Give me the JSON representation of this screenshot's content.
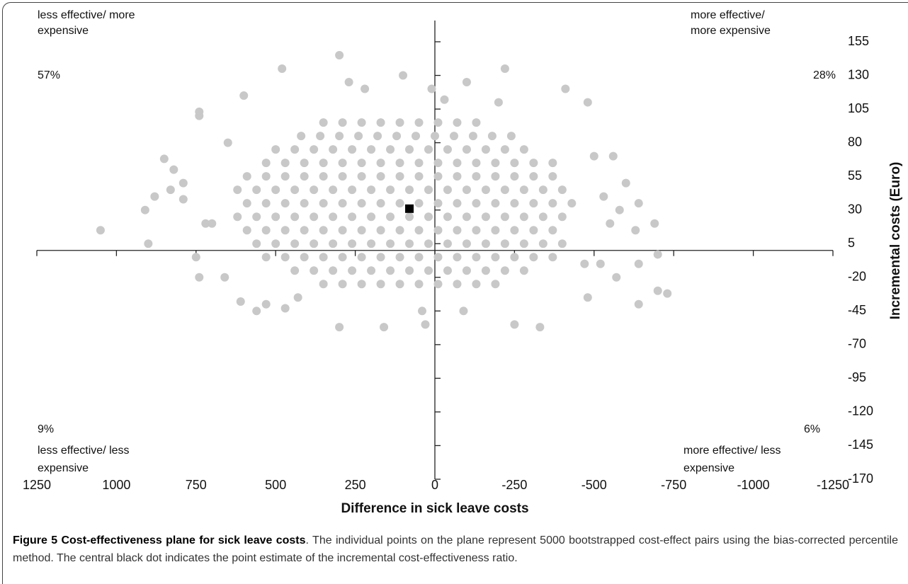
{
  "chart_data": {
    "type": "scatter",
    "x_label": "Difference in sick leave costs",
    "y_label": "Incremental costs (Euro)",
    "xlim": [
      1250,
      -1250
    ],
    "xticks": [
      1250,
      1000,
      750,
      500,
      250,
      0,
      -250,
      -500,
      -750,
      -1000,
      -1250
    ],
    "ylim": [
      -170,
      155
    ],
    "yticks": [
      155,
      130,
      105,
      80,
      55,
      30,
      5,
      -20,
      -45,
      -70,
      -95,
      -120,
      -145,
      -170
    ],
    "annotations": [
      {
        "lines": [
          "less effective/ more",
          "expensive"
        ],
        "share": "57%",
        "corner": "top-left"
      },
      {
        "lines": [
          "more effective/",
          "more expensive"
        ],
        "share": "28%",
        "corner": "top-right"
      },
      {
        "lines": [
          "less effective/ less",
          "expensive"
        ],
        "share": "9%",
        "corner": "bottom-left"
      },
      {
        "lines": [
          "more effective/ less",
          "expensive"
        ],
        "share": "6%",
        "corner": "bottom-right"
      }
    ],
    "series": [
      {
        "color": "#c8c8c8",
        "x": [
          350,
          290,
          230,
          170,
          110,
          50,
          -10,
          -70,
          -130,
          420,
          360,
          300,
          240,
          180,
          120,
          60,
          0,
          -60,
          -120,
          -180,
          -240,
          500,
          440,
          380,
          320,
          260,
          200,
          140,
          80,
          20,
          -40,
          -100,
          -160,
          -220,
          -280,
          530,
          470,
          410,
          350,
          290,
          230,
          170,
          110,
          50,
          -10,
          -70,
          -130,
          -190,
          -250,
          -310,
          -370,
          590,
          530,
          470,
          410,
          350,
          290,
          230,
          170,
          110,
          50,
          -10,
          -70,
          -130,
          -190,
          -250,
          -310,
          -370,
          620,
          560,
          500,
          440,
          380,
          320,
          260,
          200,
          140,
          80,
          20,
          -40,
          -100,
          -160,
          -220,
          -280,
          -340,
          -400,
          590,
          530,
          470,
          410,
          350,
          290,
          230,
          170,
          110,
          50,
          -10,
          -70,
          -130,
          -190,
          -250,
          -310,
          -370,
          -430,
          620,
          560,
          500,
          440,
          380,
          320,
          260,
          200,
          140,
          80,
          20,
          -40,
          -100,
          -160,
          -220,
          -280,
          -340,
          -400,
          590,
          530,
          470,
          410,
          350,
          290,
          230,
          170,
          110,
          50,
          -10,
          -70,
          -130,
          -190,
          -250,
          -310,
          -370,
          560,
          500,
          440,
          380,
          320,
          260,
          200,
          140,
          80,
          20,
          -40,
          -100,
          -160,
          -220,
          -280,
          -340,
          -400,
          530,
          470,
          410,
          350,
          290,
          230,
          170,
          110,
          50,
          -10,
          -70,
          -130,
          -190,
          -250,
          -310,
          -370,
          440,
          380,
          320,
          260,
          200,
          140,
          80,
          20,
          -40,
          -100,
          -160,
          -220,
          -280,
          350,
          290,
          230,
          170,
          110,
          50,
          -10,
          -70,
          -130,
          -190,
          1050,
          900,
          910,
          880,
          830,
          850,
          820,
          790,
          740,
          790,
          720,
          750,
          740,
          700,
          660,
          610,
          560,
          530,
          470,
          430,
          300,
          160,
          30,
          40,
          -90,
          -250,
          -330,
          -480,
          -470,
          -570,
          -640,
          -700,
          -730,
          -700,
          -640,
          -690,
          -640,
          -630,
          -560,
          -480,
          -410,
          -220,
          -100,
          10,
          100,
          300,
          480,
          600,
          740,
          650,
          270,
          220,
          -30,
          -200,
          -500,
          -530,
          -580,
          -600,
          -550,
          -520
        ],
        "values": [
          95,
          95,
          95,
          95,
          95,
          95,
          95,
          95,
          95,
          85,
          85,
          85,
          85,
          85,
          85,
          85,
          85,
          85,
          85,
          85,
          85,
          75,
          75,
          75,
          75,
          75,
          75,
          75,
          75,
          75,
          75,
          75,
          75,
          75,
          75,
          65,
          65,
          65,
          65,
          65,
          65,
          65,
          65,
          65,
          65,
          65,
          65,
          65,
          65,
          65,
          65,
          55,
          55,
          55,
          55,
          55,
          55,
          55,
          55,
          55,
          55,
          55,
          55,
          55,
          55,
          55,
          55,
          55,
          45,
          45,
          45,
          45,
          45,
          45,
          45,
          45,
          45,
          45,
          45,
          45,
          45,
          45,
          45,
          45,
          45,
          45,
          35,
          35,
          35,
          35,
          35,
          35,
          35,
          35,
          35,
          35,
          35,
          35,
          35,
          35,
          35,
          35,
          35,
          35,
          25,
          25,
          25,
          25,
          25,
          25,
          25,
          25,
          25,
          25,
          25,
          25,
          25,
          25,
          25,
          25,
          25,
          25,
          15,
          15,
          15,
          15,
          15,
          15,
          15,
          15,
          15,
          15,
          15,
          15,
          15,
          15,
          15,
          15,
          15,
          5,
          5,
          5,
          5,
          5,
          5,
          5,
          5,
          5,
          5,
          5,
          5,
          5,
          5,
          5,
          5,
          5,
          -5,
          -5,
          -5,
          -5,
          -5,
          -5,
          -5,
          -5,
          -5,
          -5,
          -5,
          -5,
          -5,
          -5,
          -5,
          -5,
          -15,
          -15,
          -15,
          -15,
          -15,
          -15,
          -15,
          -15,
          -15,
          -15,
          -15,
          -15,
          -15,
          -25,
          -25,
          -25,
          -25,
          -25,
          -25,
          -25,
          -25,
          -25,
          -25,
          15,
          5,
          30,
          40,
          45,
          68,
          60,
          50,
          100,
          38,
          20,
          -5,
          -20,
          20,
          -20,
          -38,
          -45,
          -40,
          -43,
          -35,
          -57,
          -57,
          -55,
          -45,
          -45,
          -55,
          -57,
          -35,
          -10,
          -20,
          -10,
          -3,
          -32,
          -30,
          -40,
          20,
          35,
          15,
          70,
          110,
          120,
          135,
          125,
          120,
          130,
          145,
          135,
          115,
          103,
          80,
          125,
          120,
          112,
          110,
          70,
          40,
          30,
          50,
          20,
          -10
        ]
      }
    ],
    "point_estimate": {
      "x": 80,
      "value": 31,
      "color": "#000000"
    }
  },
  "caption": {
    "label": "Figure 5 Cost-effectiveness plane for sick leave costs",
    "text": ". The individual points on the plane represent 5000 bootstrapped cost-effect pairs using the bias-corrected percentile method. The central black dot indicates the point estimate of the incremental cost-effectiveness ratio."
  }
}
